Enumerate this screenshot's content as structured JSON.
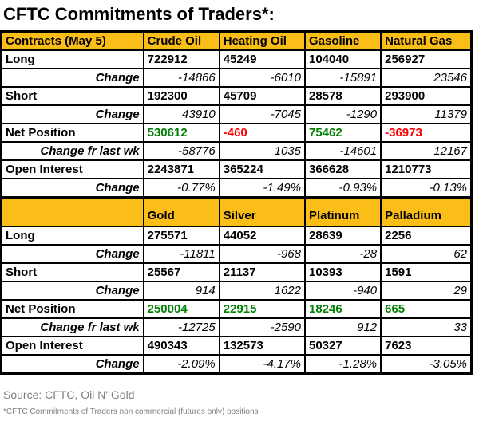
{
  "title": "CFTC Commitments of Traders*:",
  "footer": {
    "source": "Source: CFTC, Oil N' Gold",
    "note": "*CFTC Commitments of Traders non commercial (futures only) positions"
  },
  "colors": {
    "header_bg": "#FBBE18",
    "label_bg": "#F9CDA7",
    "positive": "#008000",
    "negative": "#FF0000",
    "border": "#000000",
    "footer_text": "#808080"
  },
  "chart_data": {
    "type": "table",
    "title": "CFTC Commitments of Traders*:",
    "sections": [
      {
        "corner_label": "Contracts (May 5)",
        "columns": [
          "Crude Oil",
          "Heating Oil",
          "Gasoline",
          "Natural Gas"
        ],
        "rows": [
          {
            "label": "Long",
            "style": "main",
            "values": [
              "722912",
              "45249",
              "104040",
              "256927"
            ]
          },
          {
            "label": "Change",
            "style": "change",
            "values": [
              "-14866",
              "-6010",
              "-15891",
              "23546"
            ]
          },
          {
            "label": "Short",
            "style": "main",
            "values": [
              "192300",
              "45709",
              "28578",
              "293900"
            ]
          },
          {
            "label": "Change",
            "style": "change",
            "values": [
              "43910",
              "-7045",
              "-1290",
              "11379"
            ]
          },
          {
            "label": "Net Position",
            "style": "net",
            "values": [
              "530612",
              "-460",
              "75462",
              "-36973"
            ]
          },
          {
            "label": "Change fr last wk",
            "style": "change",
            "values": [
              "-58776",
              "1035",
              "-14601",
              "12167"
            ]
          },
          {
            "label": "Open Interest",
            "style": "main",
            "values": [
              "2243871",
              "365224",
              "366628",
              "1210773"
            ]
          },
          {
            "label": "Change",
            "style": "change",
            "values": [
              "-0.77%",
              "-1.49%",
              "-0.93%",
              "-0.13%"
            ]
          }
        ]
      },
      {
        "corner_label": "",
        "columns": [
          "Gold",
          "Silver",
          "Platinum",
          "Palladium"
        ],
        "rows": [
          {
            "label": "Long",
            "style": "main",
            "values": [
              "275571",
              "44052",
              "28639",
              "2256"
            ]
          },
          {
            "label": "Change",
            "style": "change",
            "values": [
              "-11811",
              "-968",
              "-28",
              "62"
            ]
          },
          {
            "label": "Short",
            "style": "main",
            "values": [
              "25567",
              "21137",
              "10393",
              "1591"
            ]
          },
          {
            "label": "Change",
            "style": "change",
            "values": [
              "914",
              "1622",
              "-940",
              "29"
            ]
          },
          {
            "label": "Net Position",
            "style": "net",
            "values": [
              "250004",
              "22915",
              "18246",
              "665"
            ]
          },
          {
            "label": "Change fr last wk",
            "style": "change",
            "values": [
              "-12725",
              "-2590",
              "912",
              "33"
            ]
          },
          {
            "label": "Open Interest",
            "style": "main",
            "values": [
              "490343",
              "132573",
              "50327",
              "7623"
            ]
          },
          {
            "label": "Change",
            "style": "change",
            "values": [
              "-2.09%",
              "-4.17%",
              "-1.28%",
              "-3.05%"
            ]
          }
        ]
      }
    ]
  }
}
